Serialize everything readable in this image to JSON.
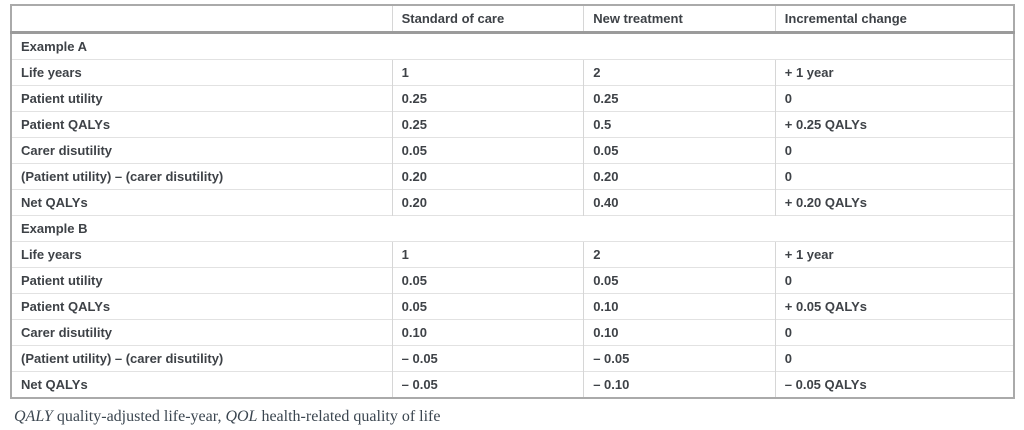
{
  "table": {
    "columns": [
      "",
      "Standard of care",
      "New treatment",
      "Incremental change"
    ],
    "sections": [
      {
        "label": "Example A",
        "rows": [
          {
            "label": "Life years",
            "values": [
              "1",
              "2",
              "+ 1 year"
            ]
          },
          {
            "label": "Patient utility",
            "values": [
              "0.25",
              "0.25",
              "0"
            ]
          },
          {
            "label": "Patient QALYs",
            "values": [
              "0.25",
              "0.5",
              "+ 0.25 QALYs"
            ]
          },
          {
            "label": "Carer disutility",
            "values": [
              "0.05",
              "0.05",
              "0"
            ]
          },
          {
            "label": "(Patient utility) – (carer disutility)",
            "values": [
              "0.20",
              "0.20",
              "0"
            ]
          },
          {
            "label": "Net QALYs",
            "values": [
              "0.20",
              "0.40",
              "+ 0.20 QALYs"
            ]
          }
        ]
      },
      {
        "label": "Example B",
        "rows": [
          {
            "label": "Life years",
            "values": [
              "1",
              "2",
              "+ 1 year"
            ]
          },
          {
            "label": "Patient utility",
            "values": [
              "0.05",
              "0.05",
              "0"
            ]
          },
          {
            "label": "Patient QALYs",
            "values": [
              "0.05",
              "0.10",
              "+ 0.05 QALYs"
            ]
          },
          {
            "label": "Carer disutility",
            "values": [
              "0.10",
              "0.10",
              "0"
            ]
          },
          {
            "label": "(Patient utility) – (carer disutility)",
            "values": [
              "– 0.05",
              "– 0.05",
              "0"
            ]
          },
          {
            "label": "Net QALYs",
            "values": [
              "– 0.05",
              "– 0.10",
              "– 0.05 QALYs"
            ]
          }
        ]
      }
    ]
  },
  "footnote": {
    "abbr1": "QALY",
    "rest1": "quality-adjusted life-year,",
    "abbr2": "QOL",
    "rest2": "health-related quality of life"
  },
  "colors": {
    "text": "#3e4247",
    "footnote_text": "#3b4650",
    "header_rule": "#9b9b9b",
    "row_line": "#e2e2e2",
    "column_line": "#d6d6d6",
    "outer_border": "#aaaaaa",
    "background": "#ffffff"
  }
}
